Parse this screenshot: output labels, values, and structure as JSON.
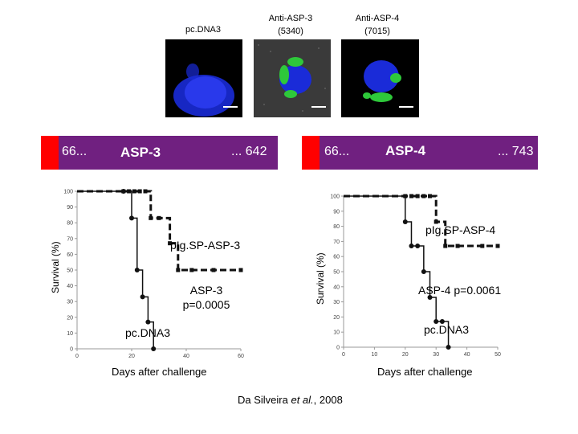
{
  "panels": {
    "pc": {
      "title": "pc.DNA3"
    },
    "asp3": {
      "title": "Anti-ASP-3",
      "subtitle": "(5340)"
    },
    "asp4": {
      "title": "Anti-ASP-4",
      "subtitle": "(7015)"
    }
  },
  "bar_left": {
    "start": "66...",
    "label": "ASP-3",
    "end": "... 642",
    "colors": {
      "red": "#ff0000",
      "purple": "#702080"
    }
  },
  "bar_right": {
    "start": "66...",
    "label": "ASP-4",
    "end": "... 743",
    "colors": {
      "red": "#ff0000",
      "purple": "#702080"
    }
  },
  "chart_data": [
    {
      "type": "line",
      "ylabel": "Survival (%)",
      "xlabel": "Days after challenge",
      "xlim": [
        0,
        60
      ],
      "ylim": [
        0,
        100
      ],
      "xticks": [
        0,
        20,
        40,
        60
      ],
      "yticks": [
        0,
        10,
        20,
        30,
        40,
        50,
        60,
        70,
        80,
        90,
        100
      ],
      "annotations": [
        "pIg.SP-ASP-3",
        "ASP-3\np=0.0005",
        "pc.DNA3"
      ],
      "series": [
        {
          "name": "pIg.SP-ASP-3",
          "style": "dashed",
          "x": [
            0,
            17,
            19,
            21,
            23,
            25,
            27,
            30,
            34,
            37,
            42,
            50,
            60
          ],
          "y": [
            100,
            100,
            100,
            100,
            100,
            100,
            83,
            83,
            67,
            50,
            50,
            50,
            50
          ]
        },
        {
          "name": "pc.DNA3",
          "style": "solid",
          "x": [
            0,
            17,
            20,
            22,
            24,
            26,
            28
          ],
          "y": [
            100,
            100,
            83,
            50,
            33,
            17,
            0
          ]
        }
      ]
    },
    {
      "type": "line",
      "ylabel": "Survival (%)",
      "xlabel": "Days after challenge",
      "xlim": [
        0,
        50
      ],
      "ylim": [
        0,
        100
      ],
      "xticks": [
        0,
        10,
        20,
        30,
        40,
        50
      ],
      "yticks": [
        0,
        10,
        20,
        30,
        40,
        50,
        60,
        70,
        80,
        90,
        100
      ],
      "annotations": [
        "pIg.SP-ASP-4",
        "ASP-4 p=0.0061",
        "pc.DNA3"
      ],
      "series": [
        {
          "name": "pIg.SP-ASP-4",
          "style": "dashed",
          "x": [
            0,
            20,
            22,
            24,
            26,
            28,
            30,
            33,
            37,
            45,
            50
          ],
          "y": [
            100,
            100,
            100,
            100,
            100,
            100,
            83,
            67,
            67,
            67,
            67
          ]
        },
        {
          "name": "pc.DNA3",
          "style": "solid",
          "x": [
            0,
            20,
            22,
            24,
            26,
            28,
            30,
            32,
            34
          ],
          "y": [
            100,
            83,
            67,
            67,
            50,
            33,
            17,
            17,
            0
          ]
        }
      ]
    }
  ],
  "citation": {
    "prefix": "Da Silveira ",
    "etal": "et al.",
    "suffix": ", 2008"
  }
}
